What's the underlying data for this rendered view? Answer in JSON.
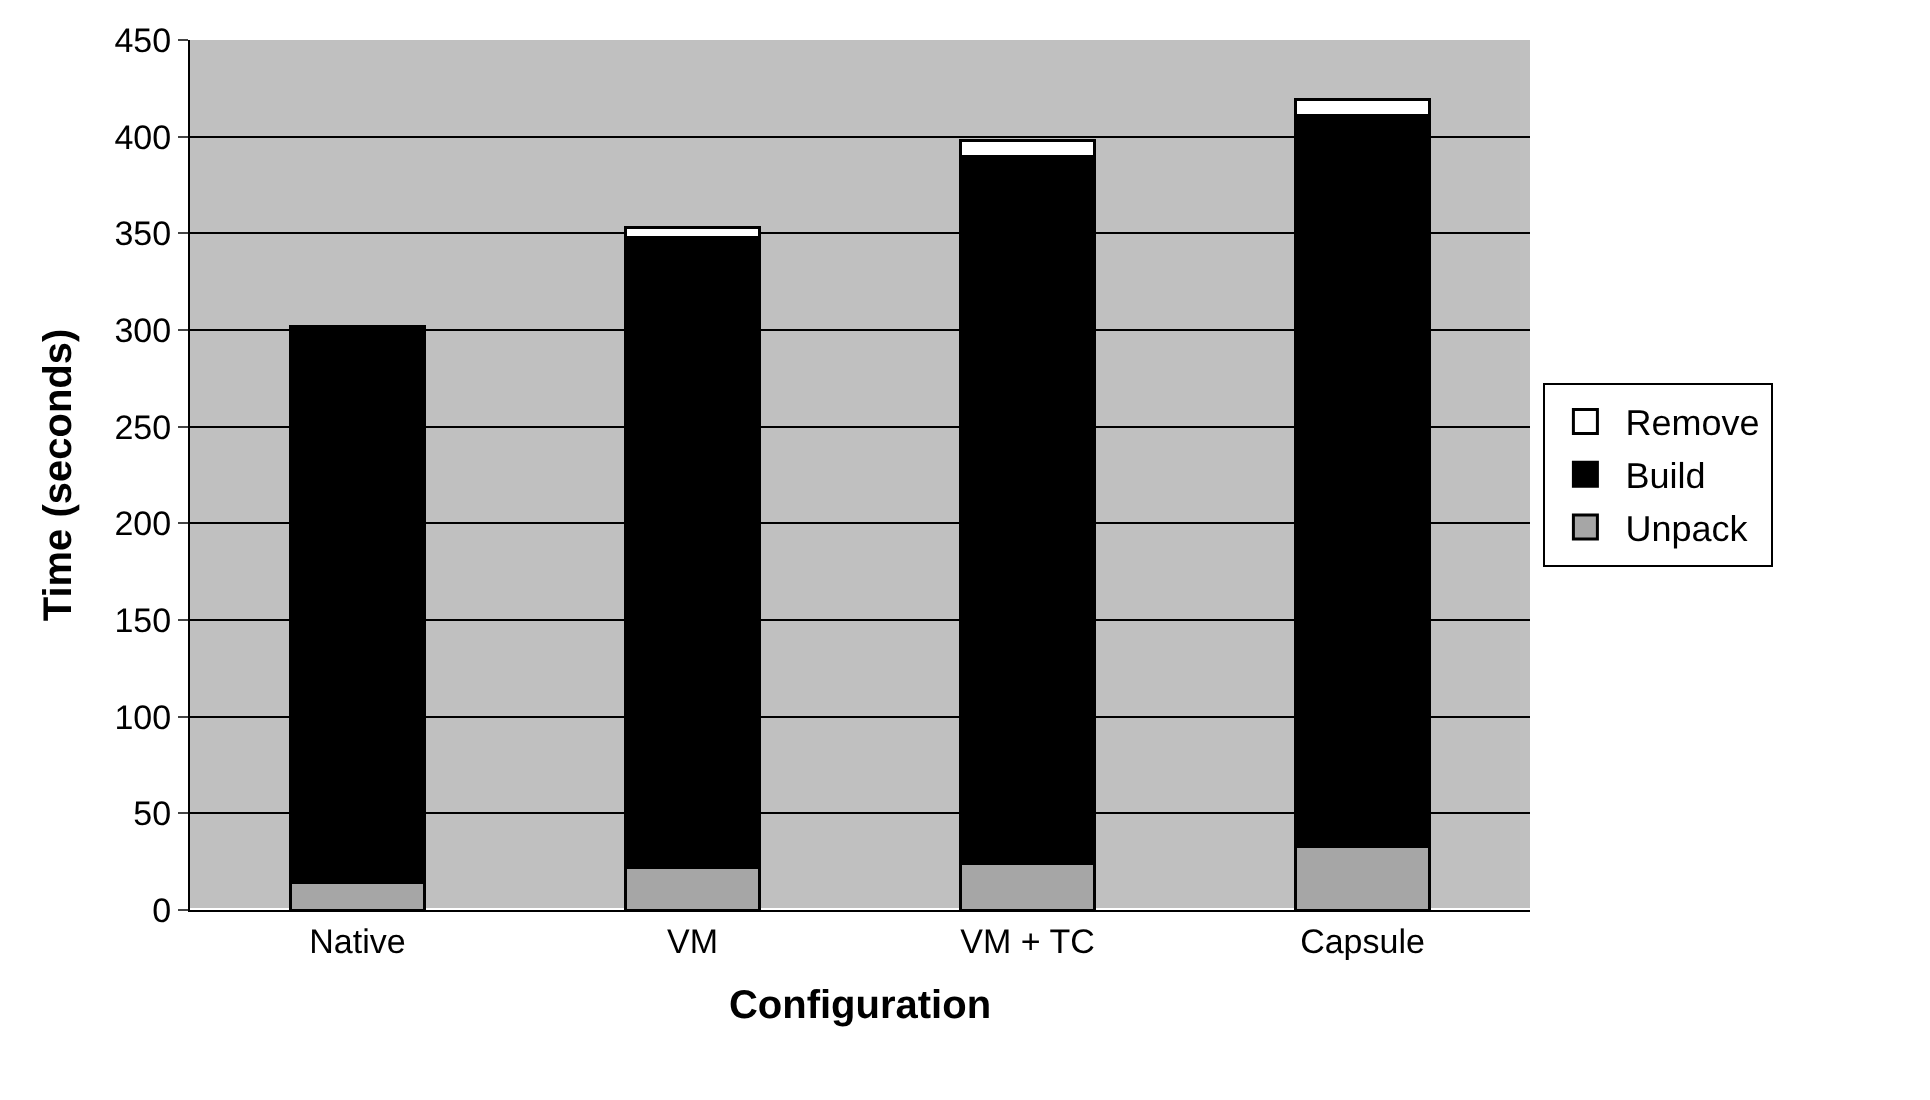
{
  "chart_data": {
    "type": "bar",
    "stacked": true,
    "xlabel": "Configuration",
    "ylabel": "Time (seconds)",
    "categories": [
      "Native",
      "VM",
      "VM + TC",
      "Capsule"
    ],
    "series": [
      {
        "name": "Unpack",
        "color": "#a6a6a6",
        "values": [
          14,
          22,
          24,
          33
        ]
      },
      {
        "name": "Build",
        "color": "#000000",
        "values": [
          288,
          326,
          366,
          378
        ]
      },
      {
        "name": "Remove",
        "color": "#ffffff",
        "values": [
          null,
          5,
          8,
          8
        ]
      }
    ],
    "ylim": [
      0,
      450
    ],
    "yticks": [
      0,
      50,
      100,
      150,
      200,
      250,
      300,
      350,
      400,
      450
    ],
    "grid": "y",
    "legend": "right"
  }
}
